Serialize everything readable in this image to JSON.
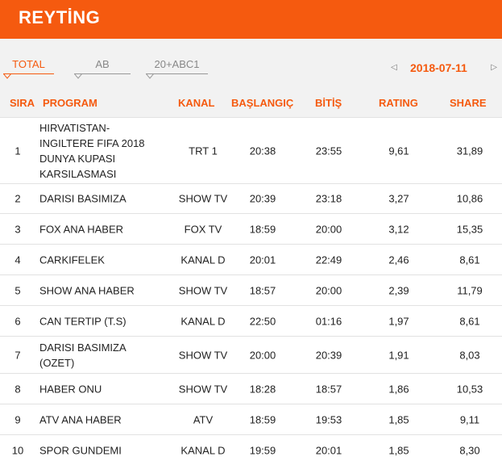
{
  "header": {
    "title": "REYTİNG"
  },
  "tabs": [
    {
      "label": "TOTAL",
      "active": true
    },
    {
      "label": "AB",
      "active": false
    },
    {
      "label": "20+ABC1",
      "active": false
    }
  ],
  "date_nav": {
    "prev_icon": "◁",
    "date": "2018-07-11",
    "next_icon": "▷"
  },
  "columns": {
    "rank": "SIRA",
    "program": "PROGRAM",
    "kanal": "KANAL",
    "start": "BAŞLANGIÇ",
    "end": "BİTİŞ",
    "rating": "RATING",
    "share": "SHARE"
  },
  "rows": [
    {
      "rank": "1",
      "program": "HIRVATISTAN-INGILTERE FIFA 2018 DUNYA KUPASI KARSILASMASI",
      "kanal": "TRT 1",
      "start": "20:38",
      "end": "23:55",
      "rating": "9,61",
      "share": "31,89"
    },
    {
      "rank": "2",
      "program": "DARISI BASIMIZA",
      "kanal": "SHOW TV",
      "start": "20:39",
      "end": "23:18",
      "rating": "3,27",
      "share": "10,86"
    },
    {
      "rank": "3",
      "program": "FOX ANA HABER",
      "kanal": "FOX TV",
      "start": "18:59",
      "end": "20:00",
      "rating": "3,12",
      "share": "15,35"
    },
    {
      "rank": "4",
      "program": "CARKIFELEK",
      "kanal": "KANAL D",
      "start": "20:01",
      "end": "22:49",
      "rating": "2,46",
      "share": "8,61"
    },
    {
      "rank": "5",
      "program": "SHOW ANA HABER",
      "kanal": "SHOW TV",
      "start": "18:57",
      "end": "20:00",
      "rating": "2,39",
      "share": "11,79"
    },
    {
      "rank": "6",
      "program": "CAN TERTIP (T.S)",
      "kanal": "KANAL D",
      "start": "22:50",
      "end": "01:16",
      "rating": "1,97",
      "share": "8,61"
    },
    {
      "rank": "7",
      "program": "DARISI BASIMIZA (OZET)",
      "kanal": "SHOW TV",
      "start": "20:00",
      "end": "20:39",
      "rating": "1,91",
      "share": "8,03"
    },
    {
      "rank": "8",
      "program": "HABER ONU",
      "kanal": "SHOW TV",
      "start": "18:28",
      "end": "18:57",
      "rating": "1,86",
      "share": "10,53"
    },
    {
      "rank": "9",
      "program": "ATV ANA HABER",
      "kanal": "ATV",
      "start": "18:59",
      "end": "19:53",
      "rating": "1,85",
      "share": "9,11"
    },
    {
      "rank": "10",
      "program": "SPOR GUNDEMI",
      "kanal": "KANAL D",
      "start": "19:59",
      "end": "20:01",
      "rating": "1,85",
      "share": "8,30"
    }
  ]
}
